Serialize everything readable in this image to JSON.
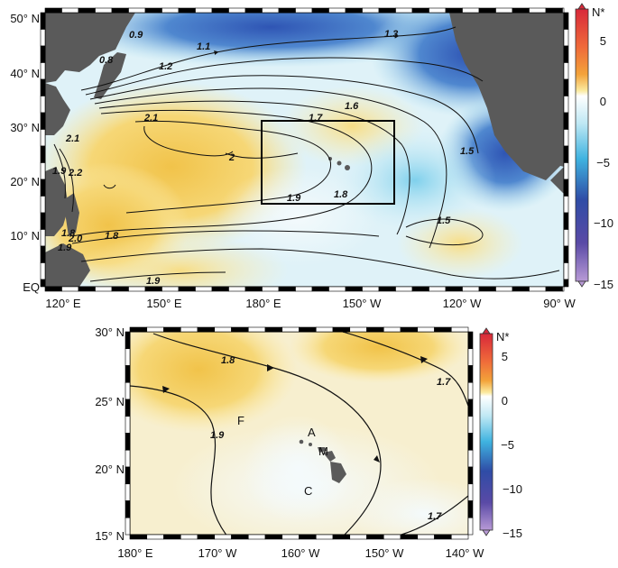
{
  "colorbar": {
    "title": "N*",
    "ticks": [
      "5",
      "0",
      "−5",
      "−10",
      "−15"
    ],
    "tick_values": [
      5,
      0,
      -5,
      -10,
      -15
    ],
    "range": [
      -15,
      7
    ],
    "colors": {
      "high": "#d8283a",
      "warm": "#f3a33a",
      "pale": "#fbeaa0",
      "zero": "#ffffff",
      "cool": "#5cc6e6",
      "deep": "#2f4ca6",
      "low": "#9a7ac2"
    }
  },
  "top_map": {
    "lat_labels": [
      "50° N",
      "40° N",
      "30° N",
      "20° N",
      "10° N",
      "EQ"
    ],
    "lon_labels": [
      "120° E",
      "150° E",
      "180° E",
      "150° W",
      "120° W",
      "90° W"
    ],
    "contour_labels": [
      "0.9",
      "0.8",
      "1.1",
      "1.2",
      "1.3",
      "1.6",
      "1.7",
      "1.5",
      "2.1",
      "2",
      "2.1",
      "1.9",
      "2.2",
      "1.9",
      "1.8",
      "1.9",
      "1.8",
      "1.5",
      "1.8",
      "1.9",
      "2.0"
    ],
    "land_color": "#5a5a5a",
    "box_label": ""
  },
  "bottom_map": {
    "lat_labels": [
      "30° N",
      "25° N",
      "20° N",
      "15° N"
    ],
    "lon_labels": [
      "180° E",
      "170° W",
      "160° W",
      "150° W",
      "140° W"
    ],
    "contour_labels": [
      "1.8",
      "1.7",
      "1.9",
      "1.7"
    ],
    "sites": [
      "F",
      "A",
      "M",
      "C"
    ]
  },
  "icons": {
    "colorbar_cap": "triangle-cap-icon",
    "contour_arrow": "arrowhead-icon"
  }
}
